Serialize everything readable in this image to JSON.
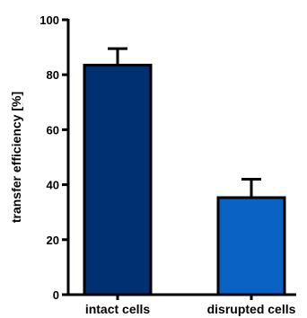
{
  "chart_data": {
    "type": "bar",
    "categories": [
      "intact cells",
      "disrupted cells"
    ],
    "values": [
      83.5,
      35.3
    ],
    "error_upper": [
      89.5,
      42
    ],
    "colors": [
      "#003070",
      "#0a63c4"
    ],
    "ylabel": "transfer efficiency [%]",
    "xlabel": "",
    "ylim": [
      0,
      100
    ],
    "yticks": [
      0,
      20,
      40,
      60,
      80,
      100
    ],
    "yticklabels": [
      "0",
      "20",
      "40",
      "60",
      "80",
      "100"
    ],
    "grid": false
  }
}
